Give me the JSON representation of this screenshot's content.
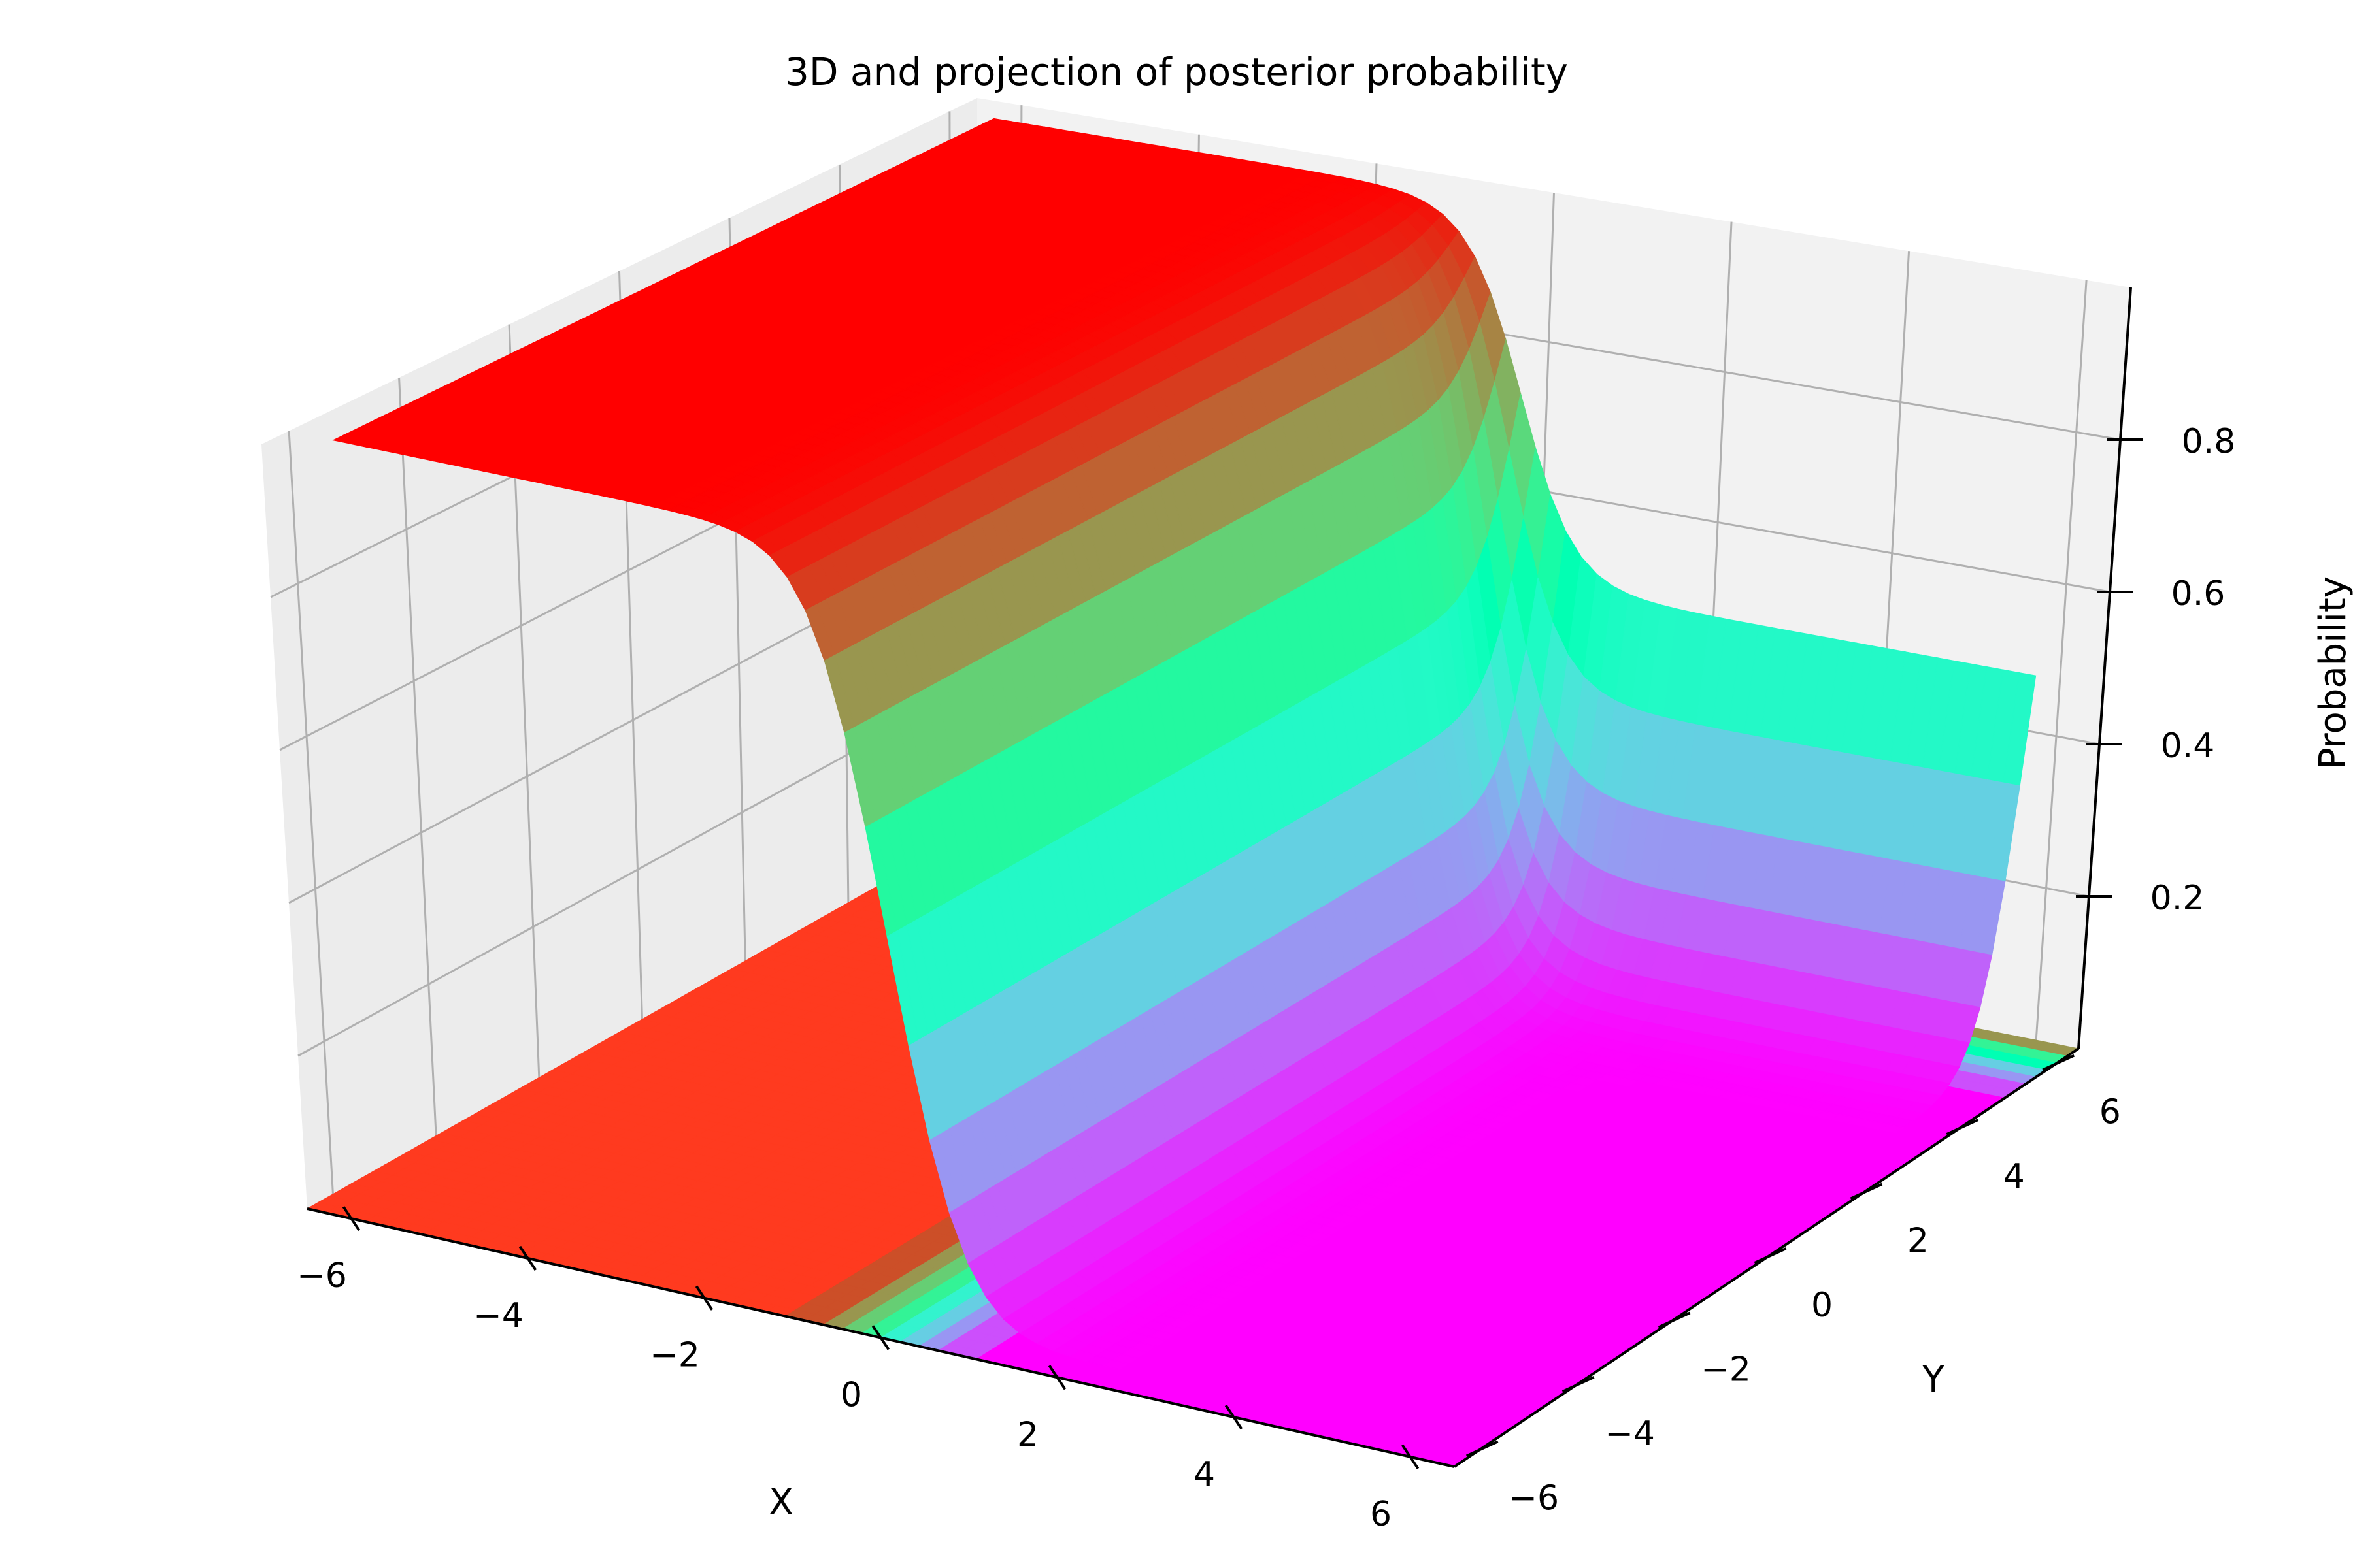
{
  "chart_data": {
    "type": "surface",
    "title": "3D and projection of posterior probability",
    "xlabel": "X",
    "ylabel": "Y",
    "zlabel": "Probability",
    "x_ticks": [
      -6,
      -4,
      -2,
      0,
      2,
      4,
      6
    ],
    "y_ticks": [
      -6,
      -4,
      -2,
      0,
      2,
      4,
      6
    ],
    "z_ticks": [
      0.2,
      0.4,
      0.6,
      0.8
    ],
    "x_tick_labels": [
      "−6",
      "−4",
      "−2",
      "0",
      "2",
      "4",
      "6"
    ],
    "y_tick_labels": [
      "−6",
      "−4",
      "−2",
      "0",
      "2",
      "4",
      "6"
    ],
    "z_tick_labels": [
      "0.2",
      "0.4",
      "0.6",
      "0.8"
    ],
    "xlim": [
      -6.5,
      6.5
    ],
    "ylim": [
      -6.5,
      6.5
    ],
    "zlim": [
      0.0,
      1.0
    ],
    "colormap": "rainbow",
    "surface_model": {
      "description_of_values": "posterior probability is ~1.0 for x < 0 or y > 6, dropping to ~0.0 in region x > 0, y < 6",
      "plateau_high": 1.0,
      "plateau_low": 0.0
    },
    "projection": {
      "on": "floor (z = 0)",
      "type": "filled contour"
    },
    "grid": true,
    "colors": {
      "pane_back": "#f2f2f2",
      "pane_side": "#ececec",
      "pane_floor": "#f5f5f5",
      "grid": "#b0b0b0",
      "projection_high": "#ff3a1f",
      "surface_low": "#7f00ff",
      "surface_high": "#ff0000"
    }
  }
}
